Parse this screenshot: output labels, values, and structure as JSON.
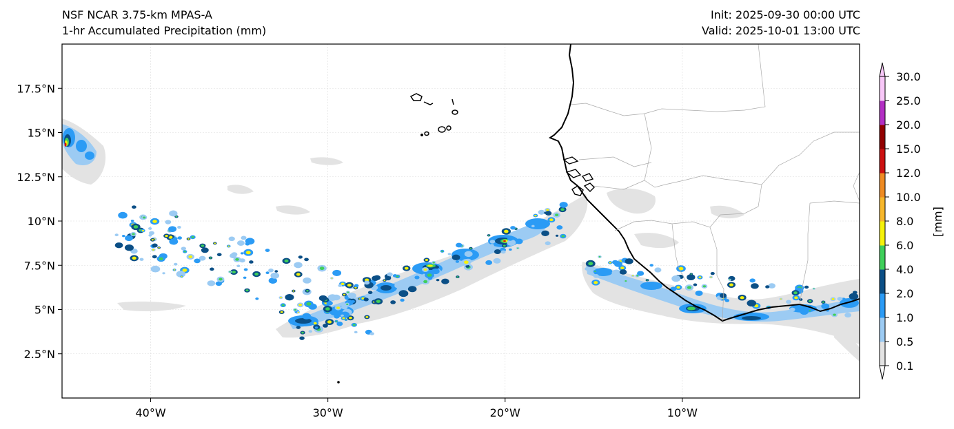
{
  "header": {
    "model": "NSF NCAR 3.75-km MPAS-A",
    "field": "1-hr Accumulated Precipitation (mm)",
    "init": "Init: 2025-09-30 00:00 UTC",
    "valid": "Valid: 2025-10-01 13:00 UTC"
  },
  "map": {
    "lon_range": [
      -45,
      0
    ],
    "lat_range": [
      0,
      20
    ],
    "lat_ticks": [
      {
        "value": 2.5,
        "label": "2.5°N"
      },
      {
        "value": 5,
        "label": "5°N"
      },
      {
        "value": 7.5,
        "label": "7.5°N"
      },
      {
        "value": 10,
        "label": "10°N"
      },
      {
        "value": 12.5,
        "label": "12.5°N"
      },
      {
        "value": 15,
        "label": "15°N"
      },
      {
        "value": 17.5,
        "label": "17.5°N"
      }
    ],
    "lon_ticks": [
      {
        "value": -40,
        "label": "40°W"
      },
      {
        "value": -30,
        "label": "30°W"
      },
      {
        "value": -20,
        "label": "20°W"
      },
      {
        "value": -10,
        "label": "10°W"
      }
    ]
  },
  "colorbar": {
    "unit_label": "[mm]",
    "levels": [
      "0.1",
      "0.5",
      "1.0",
      "2.0",
      "4.0",
      "6.0",
      "8.0",
      "10.0",
      "12.0",
      "15.0",
      "20.0",
      "25.0",
      "30.0"
    ],
    "colors": [
      "#e3e3e3",
      "#9ccbf3",
      "#2b9bf5",
      "#0b4f86",
      "#3fcf5a",
      "#f6f20a",
      "#f7b72c",
      "#ef8b23",
      "#cc1111",
      "#920000",
      "#b32fc4",
      "#f8c7f8"
    ],
    "under_color": "#ffffff",
    "over_color": "#f8c7f8"
  }
}
